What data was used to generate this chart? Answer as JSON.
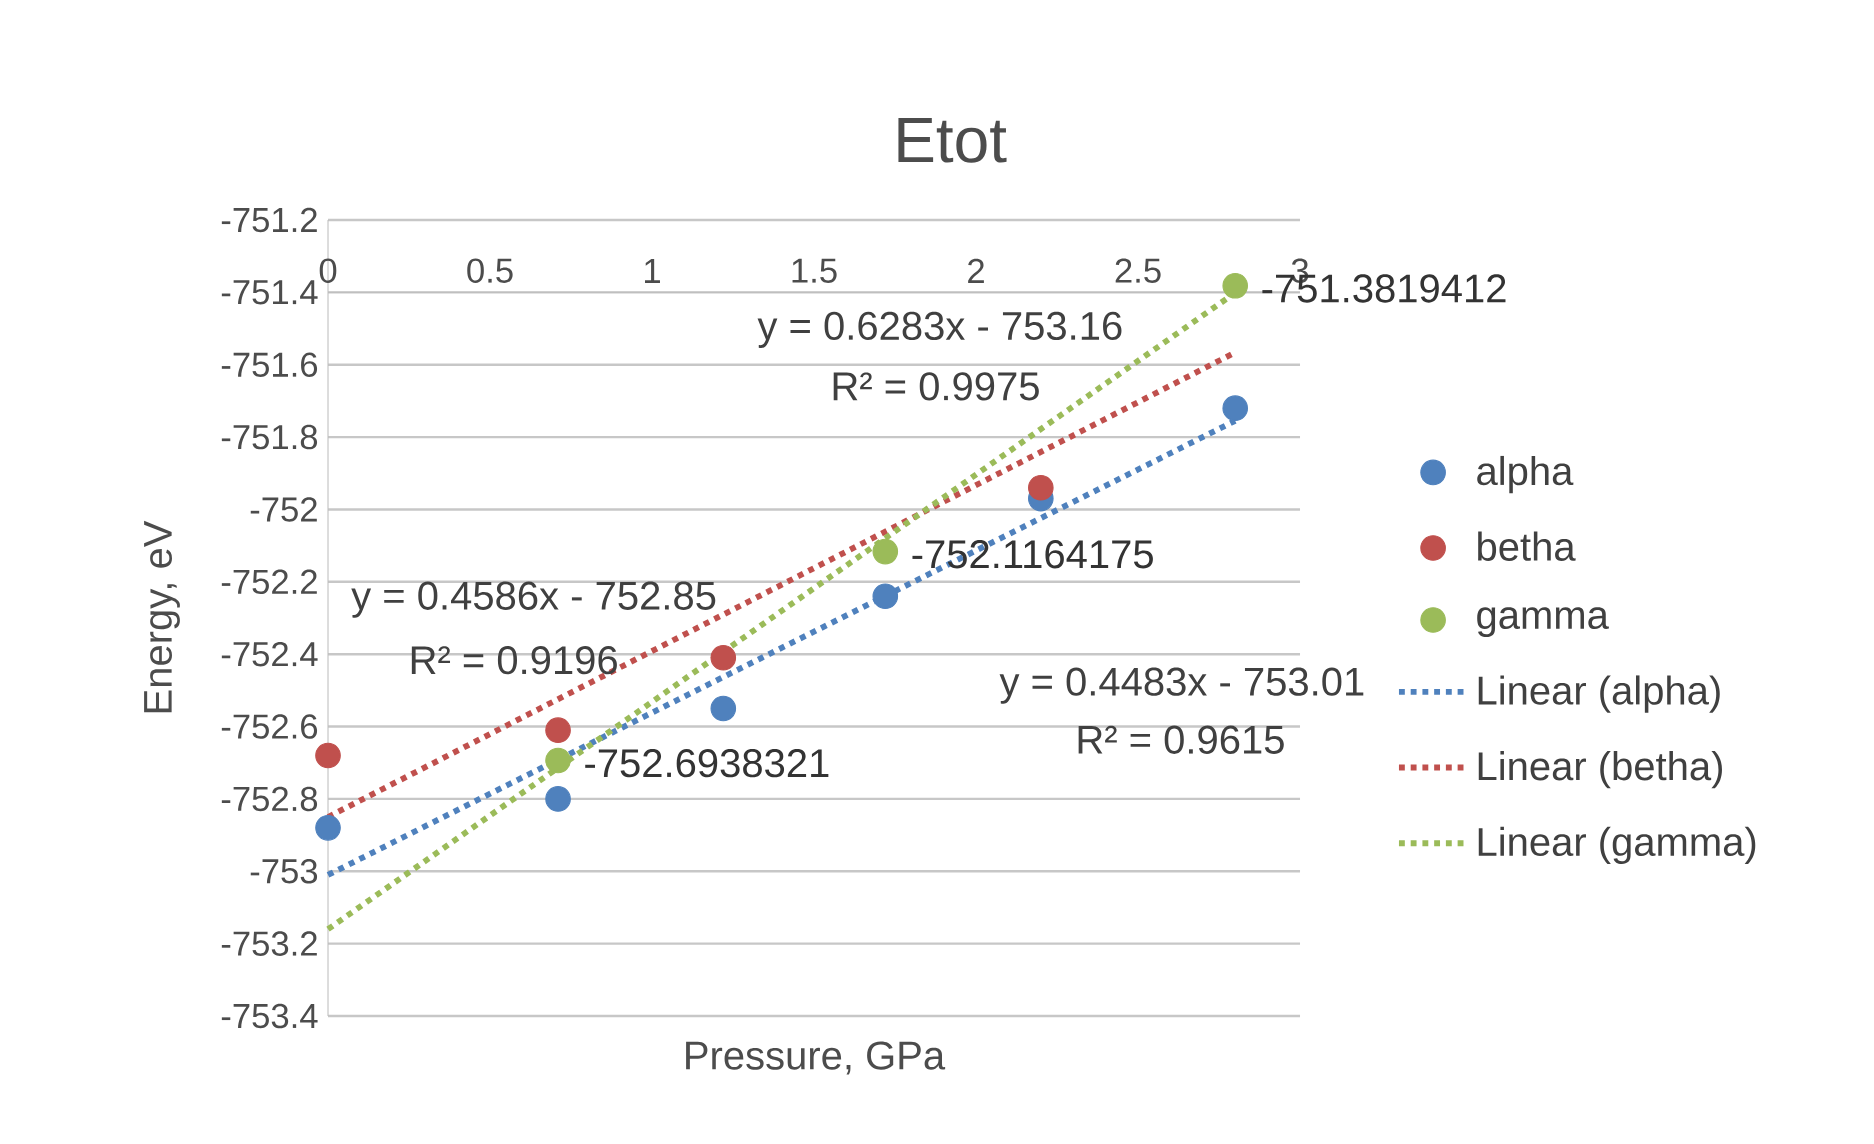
{
  "chart_data": {
    "type": "scatter",
    "title": "Etot",
    "xlabel": "Pressure, GPa",
    "ylabel": "Energy, eV",
    "xlim": [
      0,
      3
    ],
    "xticks": [
      0,
      0.5,
      1,
      1.5,
      2,
      2.5,
      3
    ],
    "ylim": [
      -753.4,
      -751.2
    ],
    "yticks": [
      -753.4,
      -753.2,
      -753,
      -752.8,
      -752.6,
      -752.4,
      -752.2,
      -752,
      -751.8,
      -751.6,
      -751.4,
      -751.2
    ],
    "grid": "y",
    "legend": "right",
    "marker": "circle",
    "series": [
      {
        "name": "alpha",
        "color": "#4f81bd",
        "x": [
          0,
          0.71,
          1.22,
          1.72,
          2.2,
          2.8
        ],
        "values": [
          -752.88,
          -752.8,
          -752.55,
          -752.24,
          -751.97,
          -751.72
        ]
      },
      {
        "name": "betha",
        "color": "#c0504d",
        "x": [
          0,
          0.71,
          1.22,
          2.2
        ],
        "values": [
          -752.68,
          -752.61,
          -752.41,
          -751.94
        ]
      },
      {
        "name": "gamma",
        "color": "#9bbb59",
        "x": [
          0.71,
          1.72,
          2.8
        ],
        "values": [
          -752.6938321,
          -752.1164175,
          -751.3819412
        ],
        "value_labels": [
          "-752.6938321",
          "-752.1164175",
          "-751.3819412"
        ]
      },
      {
        "name": "Linear (alpha)",
        "type": "line",
        "marker": "none",
        "line_style": "dotted",
        "color": "#4f81bd",
        "x": [
          0,
          2.8
        ],
        "values": [
          -753.01,
          -751.755
        ]
      },
      {
        "name": "Linear (betha)",
        "type": "line",
        "marker": "none",
        "line_style": "dotted",
        "color": "#c0504d",
        "x": [
          0,
          2.8
        ],
        "values": [
          -752.85,
          -751.566
        ]
      },
      {
        "name": "Linear (gamma)",
        "type": "line",
        "marker": "none",
        "line_style": "dotted",
        "color": "#9bbb59",
        "x": [
          0,
          2.8
        ],
        "values": [
          -753.16,
          -751.401
        ]
      }
    ],
    "annotations": [
      "y = 0.6283x - 753.16",
      "R² = 0.9975",
      "y = 0.4586x - 752.85",
      "R² = 0.9196",
      "y = 0.4483x - 753.01",
      "R² = 0.9615"
    ]
  }
}
